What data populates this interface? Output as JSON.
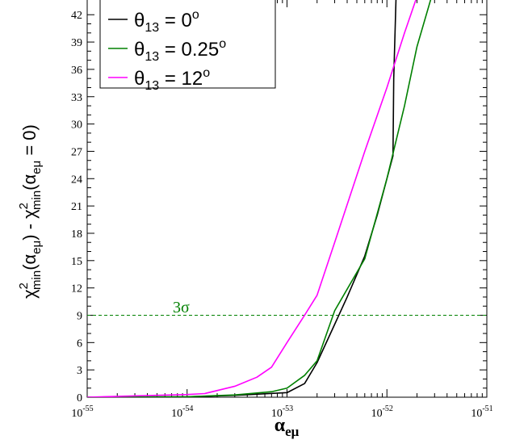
{
  "chart_data": {
    "type": "line",
    "xscale": "log",
    "xlim": [
      1e-55,
      1e-51
    ],
    "ylim": [
      0,
      44
    ],
    "xlabel": {
      "main": "α",
      "sub": "eμ"
    },
    "ylabel": {
      "p1": "χ",
      "p1_sup": "2",
      "p1_sub": "min",
      "p2": "(α",
      "p2_sub": "eμ",
      "p3": ") - χ",
      "p3_sup": "2",
      "p3_sub": "min",
      "p4": "(α",
      "p4_sub": "eμ",
      "p5": " = 0)"
    },
    "x_ticks": [
      {
        "base": "10",
        "exp": "-55",
        "value": 1e-55
      },
      {
        "base": "10",
        "exp": "-54",
        "value": 1e-54
      },
      {
        "base": "10",
        "exp": "-53",
        "value": 1e-53
      },
      {
        "base": "10",
        "exp": "-52",
        "value": 1e-52
      },
      {
        "base": "10",
        "exp": "-51",
        "value": 1e-51
      }
    ],
    "y_ticks": [
      0,
      3,
      6,
      9,
      12,
      15,
      18,
      21,
      24,
      27,
      30,
      33,
      36,
      39,
      42
    ],
    "grid": false,
    "legend_position": "top-left",
    "series": [
      {
        "name": {
          "sym": "θ",
          "sub": "13",
          "eq": " = 0",
          "deg": "o"
        },
        "color": "#000000",
        "x": [
          1e-55,
          1e-54,
          3e-54,
          1e-53,
          1.5e-53,
          2e-53,
          3e-53,
          4e-53,
          6e-53,
          8e-53,
          1e-52,
          1.15e-52,
          1.17e-52,
          1.22e-52,
          1.25e-52
        ],
        "y": [
          0,
          0.05,
          0.2,
          0.5,
          1.5,
          3.8,
          8,
          11,
          15.5,
          20,
          24,
          26.5,
          35,
          42,
          46
        ]
      },
      {
        "name": {
          "sym": "θ",
          "sub": "13",
          "eq": " = 0.25",
          "deg": "o"
        },
        "color": "#008000",
        "x": [
          1e-55,
          1e-54,
          3e-54,
          7e-54,
          1e-53,
          1.5e-53,
          2e-53,
          3e-53,
          6e-53,
          1e-52,
          1.5e-52,
          2e-52,
          2.8e-52
        ],
        "y": [
          0,
          0.05,
          0.25,
          0.6,
          1.0,
          2.4,
          4.0,
          9.5,
          15.2,
          24,
          32,
          38.5,
          44
        ]
      },
      {
        "name": {
          "sym": "θ",
          "sub": "13",
          "eq": " = 12",
          "deg": "o"
        },
        "color": "#ff00ff",
        "x": [
          1e-55,
          1e-54,
          1.5e-54,
          3e-54,
          5e-54,
          7e-54,
          1e-53,
          1.5e-53,
          2e-53,
          3e-53,
          6e-53,
          1e-52,
          1.5e-52,
          2e-52
        ],
        "y": [
          0,
          0.3,
          0.4,
          1.2,
          2.2,
          3.3,
          6.0,
          9.0,
          11.2,
          17,
          27,
          34,
          40,
          44
        ]
      }
    ],
    "reference_line": {
      "y": 9,
      "color": "#008000",
      "label": "3σ"
    }
  }
}
